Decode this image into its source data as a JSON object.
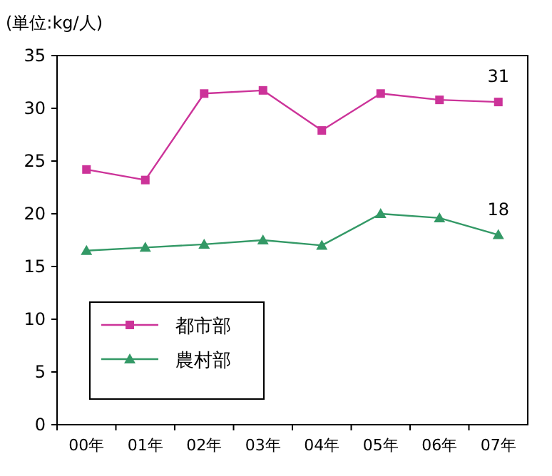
{
  "chart_data": {
    "type": "line",
    "ylabel": "(単位:kg/人)",
    "categories": [
      "00年",
      "01年",
      "02年",
      "03年",
      "04年",
      "05年",
      "06年",
      "07年"
    ],
    "series": [
      {
        "name": "都市部",
        "color": "#cc3399",
        "marker": "square",
        "values": [
          24.2,
          23.2,
          31.4,
          31.7,
          27.9,
          31.4,
          30.8,
          30.6
        ],
        "value_labels": [
          null,
          null,
          null,
          null,
          null,
          null,
          null,
          "31"
        ]
      },
      {
        "name": "農村部",
        "color": "#339966",
        "marker": "triangle",
        "values": [
          16.5,
          16.8,
          17.1,
          17.5,
          17.0,
          20.0,
          19.6,
          18.0
        ],
        "value_labels": [
          null,
          null,
          null,
          null,
          null,
          null,
          null,
          "18"
        ]
      }
    ],
    "ylim": [
      0,
      35
    ],
    "yticks": [
      0,
      5,
      10,
      15,
      20,
      25,
      30,
      35
    ],
    "grid": false,
    "legend": "bottom left"
  }
}
